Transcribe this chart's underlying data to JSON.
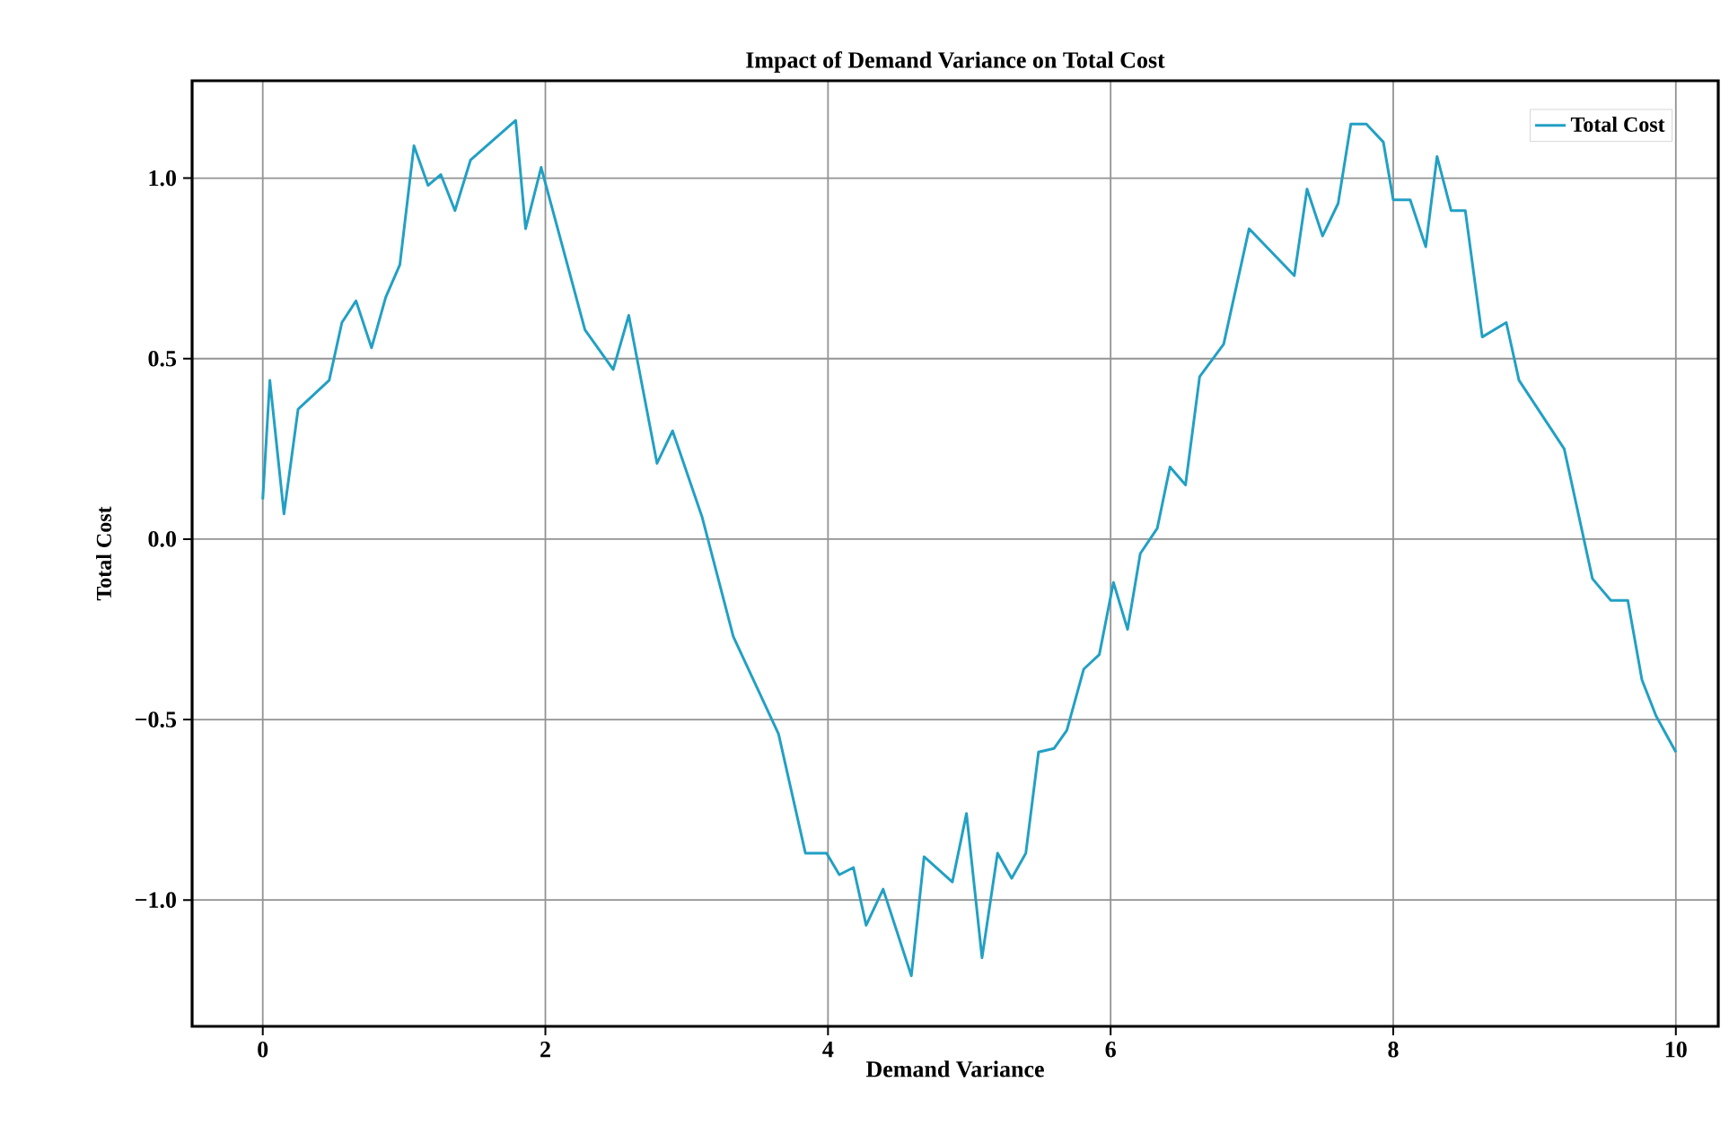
{
  "chart_data": {
    "type": "line",
    "title": "Impact of Demand Variance on Total Cost",
    "xlabel": "Demand Variance",
    "ylabel": "Total Cost",
    "xlim": [
      -0.5,
      10.3
    ],
    "ylim": [
      -1.35,
      1.27
    ],
    "xticks": [
      0,
      2,
      4,
      6,
      8,
      10
    ],
    "yticks": [
      {
        "value": -1,
        "label": "−1.0"
      },
      {
        "value": -0.5,
        "label": "−0.5"
      },
      {
        "value": 0,
        "label": "0.0"
      },
      {
        "value": 0.5,
        "label": "0.5"
      },
      {
        "value": 1,
        "label": "1.0"
      }
    ],
    "grid": true,
    "legend": "top right",
    "line_style": "solid",
    "series": [
      {
        "name": "Total Cost",
        "color": "#22a0c4",
        "x": [
          0,
          0.05,
          0.15,
          0.25,
          0.47,
          0.56,
          0.66,
          0.77,
          0.87,
          0.97,
          1.07,
          1.17,
          1.26,
          1.36,
          1.47,
          1.79,
          1.86,
          1.97,
          2.28,
          2.48,
          2.59,
          2.79,
          2.9,
          3.11,
          3.33,
          3.65,
          3.84,
          3.99,
          4.08,
          4.18,
          4.27,
          4.39,
          4.59,
          4.68,
          4.88,
          4.98,
          5.09,
          5.2,
          5.3,
          5.4,
          5.49,
          5.6,
          5.69,
          5.81,
          5.92,
          6.02,
          6.12,
          6.21,
          6.33,
          6.42,
          6.53,
          6.63,
          6.8,
          6.98,
          7.3,
          7.39,
          7.5,
          7.61,
          7.7,
          7.81,
          7.93,
          8.0,
          8.12,
          8.23,
          8.31,
          8.41,
          8.51,
          8.63,
          8.8,
          8.89,
          9.21,
          9.41,
          9.54,
          9.66,
          9.76,
          9.86,
          10
        ],
        "values": [
          0.11,
          0.44,
          0.07,
          0.36,
          0.44,
          0.6,
          0.66,
          0.53,
          0.67,
          0.76,
          1.09,
          0.98,
          1.01,
          0.91,
          1.05,
          1.16,
          0.86,
          1.03,
          0.58,
          0.47,
          0.62,
          0.21,
          0.3,
          0.06,
          -0.27,
          -0.54,
          -0.87,
          -0.87,
          -0.93,
          -0.91,
          -1.07,
          -0.97,
          -1.21,
          -0.88,
          -0.95,
          -0.76,
          -1.16,
          -0.87,
          -0.94,
          -0.87,
          -0.59,
          -0.58,
          -0.53,
          -0.36,
          -0.32,
          -0.12,
          -0.25,
          -0.04,
          0.03,
          0.2,
          0.15,
          0.45,
          0.54,
          0.86,
          0.73,
          0.97,
          0.84,
          0.93,
          1.15,
          1.15,
          1.1,
          0.94,
          0.94,
          0.81,
          1.06,
          0.91,
          0.91,
          0.56,
          0.6,
          0.44,
          0.25,
          -0.11,
          -0.17,
          -0.17,
          -0.39,
          -0.49,
          -0.59
        ]
      }
    ]
  }
}
